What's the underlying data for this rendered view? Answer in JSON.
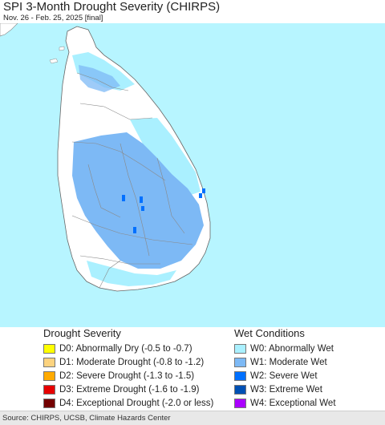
{
  "header": {
    "title": "SPI 3-Month Drought Severity (CHIRPS)",
    "subtitle": "Nov. 26 - Feb. 25, 2025 [final]"
  },
  "map": {
    "ocean_color": "#b7f5ff",
    "land_color": "#ffffff",
    "boundary_color": "#888888"
  },
  "legend": {
    "drought": {
      "heading": "Drought Severity",
      "items": [
        {
          "code": "D0",
          "label": "D0: Abnormally Dry (-0.5 to -0.7)",
          "color": "#ffff00"
        },
        {
          "code": "D1",
          "label": "D1: Moderate Drought (-0.8 to -1.2)",
          "color": "#fcd37f"
        },
        {
          "code": "D2",
          "label": "D2: Severe Drought (-1.3 to -1.5)",
          "color": "#ffaa00"
        },
        {
          "code": "D3",
          "label": "D3: Extreme Drought (-1.6 to -1.9)",
          "color": "#e60000"
        },
        {
          "code": "D4",
          "label": "D4: Exceptional Drought (-2.0 or less)",
          "color": "#730000"
        }
      ]
    },
    "wet": {
      "heading": "Wet Conditions",
      "items": [
        {
          "code": "W0",
          "label": "W0: Abnormally Wet",
          "color": "#aaf0ff"
        },
        {
          "code": "W1",
          "label": "W1: Moderate Wet",
          "color": "#7db9f5"
        },
        {
          "code": "W2",
          "label": "W2: Severe Wet",
          "color": "#0070ff"
        },
        {
          "code": "W3",
          "label": "W3: Extreme Wet",
          "color": "#0050b4"
        },
        {
          "code": "W4",
          "label": "W4: Exceptional Wet",
          "color": "#aa00ff"
        }
      ]
    }
  },
  "footer": {
    "source": "Source: CHIRPS, UCSB, Climate Hazards Center"
  }
}
